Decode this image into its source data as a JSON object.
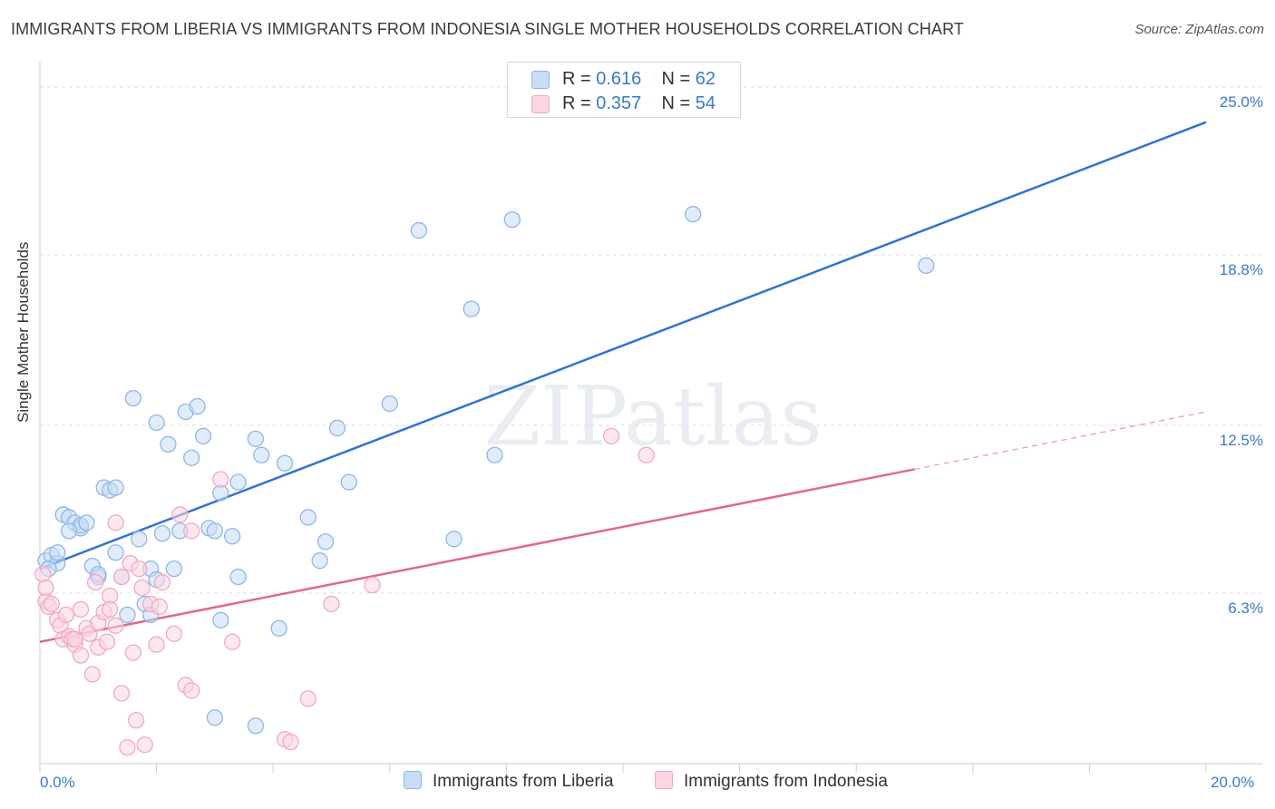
{
  "chart_data": {
    "type": "scatter",
    "title": "IMMIGRANTS FROM LIBERIA VS IMMIGRANTS FROM INDONESIA SINGLE MOTHER HOUSEHOLDS CORRELATION CHART",
    "source": "Source: ZipAtlas.com",
    "watermark": "ZIPatlas",
    "xlabel": "",
    "ylabel": "Single Mother Households",
    "xlim": [
      0,
      20
    ],
    "ylim": [
      0,
      25.6
    ],
    "x_tick_labels": [
      "0.0%",
      "20.0%"
    ],
    "y_ticks": [
      {
        "value": 25.0,
        "label": "25.0%"
      },
      {
        "value": 18.8,
        "label": "18.8%"
      },
      {
        "value": 12.5,
        "label": "12.5%"
      },
      {
        "value": 6.3,
        "label": "6.3%"
      }
    ],
    "legend": {
      "r_label": "R =",
      "n_label": "N =",
      "entries": [
        {
          "r": "0.616",
          "n": "62"
        },
        {
          "r": "0.357",
          "n": "54"
        }
      ]
    },
    "series": [
      {
        "name": "Immigrants from Liberia",
        "color": "#8fb6e8",
        "fill": "#c9dcf5",
        "line_color": "#2f72d0",
        "trend": {
          "x0": 0,
          "y0": 7.2,
          "x1": 20,
          "y1": 23.7,
          "dashed_from": null
        },
        "points": [
          [
            0.1,
            7.5
          ],
          [
            0.2,
            7.7
          ],
          [
            0.3,
            7.4
          ],
          [
            0.3,
            7.8
          ],
          [
            0.4,
            9.2
          ],
          [
            0.5,
            9.1
          ],
          [
            0.6,
            8.9
          ],
          [
            0.7,
            8.7
          ],
          [
            0.7,
            8.8
          ],
          [
            0.8,
            8.9
          ],
          [
            0.9,
            7.3
          ],
          [
            1.0,
            6.9
          ],
          [
            1.1,
            10.2
          ],
          [
            1.2,
            10.1
          ],
          [
            1.3,
            10.2
          ],
          [
            1.3,
            7.8
          ],
          [
            1.4,
            6.9
          ],
          [
            1.5,
            5.5
          ],
          [
            1.6,
            13.5
          ],
          [
            1.7,
            8.3
          ],
          [
            1.8,
            5.9
          ],
          [
            1.9,
            5.5
          ],
          [
            1.9,
            7.2
          ],
          [
            2.0,
            6.8
          ],
          [
            2.0,
            12.6
          ],
          [
            2.1,
            8.5
          ],
          [
            2.2,
            11.8
          ],
          [
            2.3,
            7.2
          ],
          [
            2.4,
            8.6
          ],
          [
            2.5,
            13.0
          ],
          [
            2.6,
            11.3
          ],
          [
            2.7,
            13.2
          ],
          [
            2.8,
            12.1
          ],
          [
            2.9,
            8.7
          ],
          [
            3.0,
            8.6
          ],
          [
            3.0,
            1.7
          ],
          [
            3.1,
            5.3
          ],
          [
            3.1,
            10.0
          ],
          [
            3.3,
            8.4
          ],
          [
            3.4,
            10.4
          ],
          [
            3.4,
            6.9
          ],
          [
            3.7,
            1.4
          ],
          [
            3.7,
            12.0
          ],
          [
            3.8,
            11.4
          ],
          [
            4.1,
            5.0
          ],
          [
            4.2,
            11.1
          ],
          [
            4.6,
            9.1
          ],
          [
            4.8,
            7.5
          ],
          [
            4.9,
            8.2
          ],
          [
            5.1,
            12.4
          ],
          [
            5.3,
            10.4
          ],
          [
            6.0,
            13.3
          ],
          [
            6.5,
            19.7
          ],
          [
            7.1,
            8.3
          ],
          [
            7.4,
            16.8
          ],
          [
            7.8,
            11.4
          ],
          [
            8.1,
            20.1
          ],
          [
            11.2,
            20.3
          ],
          [
            15.2,
            18.4
          ],
          [
            0.15,
            7.2
          ],
          [
            0.5,
            8.6
          ],
          [
            1.0,
            7.0
          ]
        ]
      },
      {
        "name": "Immigrants from Indonesia",
        "color": "#f4a8c0",
        "fill": "#fbd5e1",
        "line_color": "#e06890",
        "trend": {
          "x0": 0,
          "y0": 4.5,
          "x1": 20,
          "y1": 13.0,
          "dashed_from": 15.0
        },
        "points": [
          [
            0.05,
            7.0
          ],
          [
            0.1,
            6.0
          ],
          [
            0.15,
            5.8
          ],
          [
            0.2,
            5.9
          ],
          [
            0.3,
            5.3
          ],
          [
            0.35,
            5.1
          ],
          [
            0.4,
            4.6
          ],
          [
            0.45,
            5.5
          ],
          [
            0.5,
            4.7
          ],
          [
            0.55,
            4.6
          ],
          [
            0.6,
            4.4
          ],
          [
            0.6,
            4.6
          ],
          [
            0.7,
            5.7
          ],
          [
            0.7,
            4.0
          ],
          [
            0.8,
            5.0
          ],
          [
            0.85,
            4.8
          ],
          [
            0.9,
            3.3
          ],
          [
            0.95,
            6.7
          ],
          [
            1.0,
            4.3
          ],
          [
            1.0,
            5.2
          ],
          [
            1.1,
            5.6
          ],
          [
            1.15,
            4.5
          ],
          [
            1.2,
            6.2
          ],
          [
            1.2,
            5.7
          ],
          [
            1.3,
            5.1
          ],
          [
            1.3,
            8.9
          ],
          [
            1.4,
            6.9
          ],
          [
            1.4,
            2.6
          ],
          [
            1.5,
            0.6
          ],
          [
            1.55,
            7.4
          ],
          [
            1.6,
            4.1
          ],
          [
            1.65,
            1.6
          ],
          [
            1.7,
            7.2
          ],
          [
            1.75,
            6.5
          ],
          [
            1.8,
            0.7
          ],
          [
            1.9,
            5.9
          ],
          [
            2.0,
            4.4
          ],
          [
            2.05,
            5.8
          ],
          [
            2.1,
            6.7
          ],
          [
            2.3,
            4.8
          ],
          [
            2.4,
            9.2
          ],
          [
            2.5,
            2.9
          ],
          [
            2.6,
            8.6
          ],
          [
            2.6,
            2.7
          ],
          [
            3.1,
            10.5
          ],
          [
            3.3,
            4.5
          ],
          [
            4.2,
            0.9
          ],
          [
            4.3,
            0.8
          ],
          [
            4.6,
            2.4
          ],
          [
            5.0,
            5.9
          ],
          [
            5.7,
            6.6
          ],
          [
            9.8,
            12.1
          ],
          [
            10.4,
            11.4
          ],
          [
            0.1,
            6.5
          ]
        ]
      }
    ]
  }
}
